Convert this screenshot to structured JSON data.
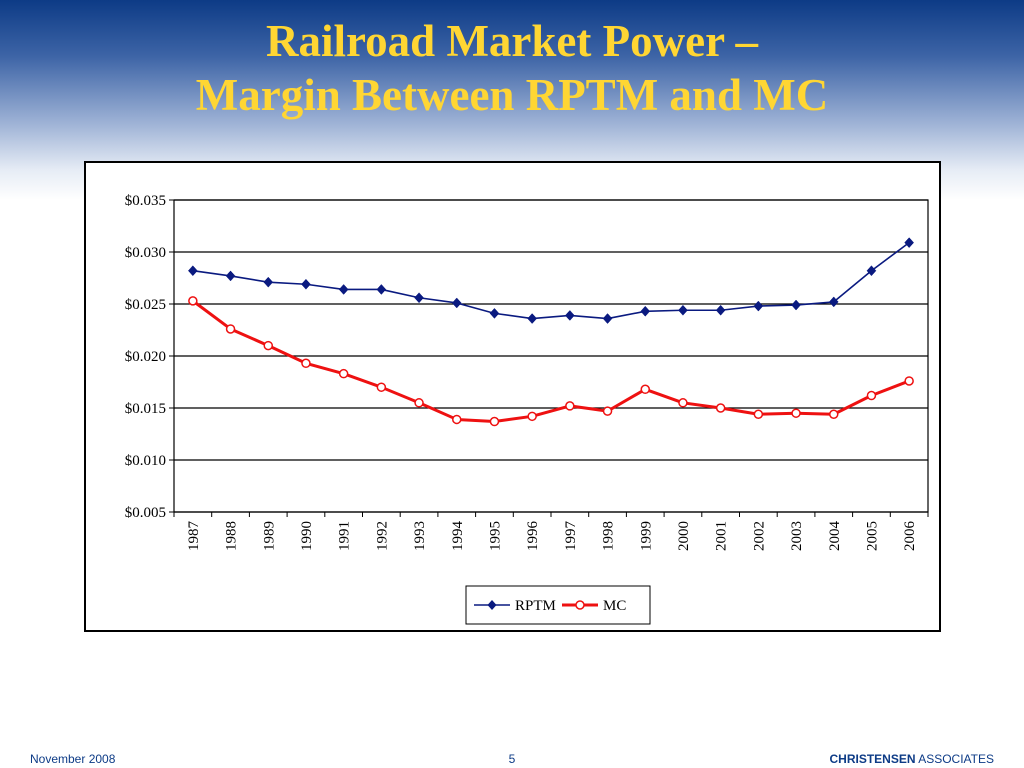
{
  "slide": {
    "title_line1": "Railroad Market Power –",
    "title_line2": "Margin Between RPTM and MC",
    "footer_date": "November 2008",
    "page_number": "5",
    "company_bold": "CHRISTENSEN",
    "company_rest": " ASSOCIATES"
  },
  "colors": {
    "title": "#ffd633",
    "rptm": "#0a1a80",
    "mc": "#ee1111",
    "footer": "#0d3b86"
  },
  "chart_data": {
    "type": "line",
    "x": [
      "1987",
      "1988",
      "1989",
      "1990",
      "1991",
      "1992",
      "1993",
      "1994",
      "1995",
      "1996",
      "1997",
      "1998",
      "1999",
      "2000",
      "2001",
      "2002",
      "2003",
      "2004",
      "2005",
      "2006"
    ],
    "series": [
      {
        "name": "RPTM",
        "color": "#0a1a80",
        "marker": "diamond",
        "values": [
          0.0282,
          0.0277,
          0.0271,
          0.0269,
          0.0264,
          0.0264,
          0.0256,
          0.0251,
          0.0241,
          0.0236,
          0.0239,
          0.0236,
          0.0243,
          0.0244,
          0.0244,
          0.0248,
          0.0249,
          0.0252,
          0.0282,
          0.0309
        ]
      },
      {
        "name": "MC",
        "color": "#ee1111",
        "marker": "circle",
        "values": [
          0.0253,
          0.0226,
          0.021,
          0.0193,
          0.0183,
          0.017,
          0.0155,
          0.0139,
          0.0137,
          0.0142,
          0.0152,
          0.0147,
          0.0168,
          0.0155,
          0.015,
          0.0144,
          0.0145,
          0.0144,
          0.0162,
          0.0176
        ]
      }
    ],
    "ylim": [
      0.005,
      0.035
    ],
    "yticks": [
      0.005,
      0.01,
      0.015,
      0.02,
      0.025,
      0.03,
      0.035
    ],
    "ytick_labels": [
      "$0.005",
      "$0.010",
      "$0.015",
      "$0.020",
      "$0.025",
      "$0.030",
      "$0.035"
    ],
    "grid": true,
    "legend_position": "bottom-center"
  }
}
